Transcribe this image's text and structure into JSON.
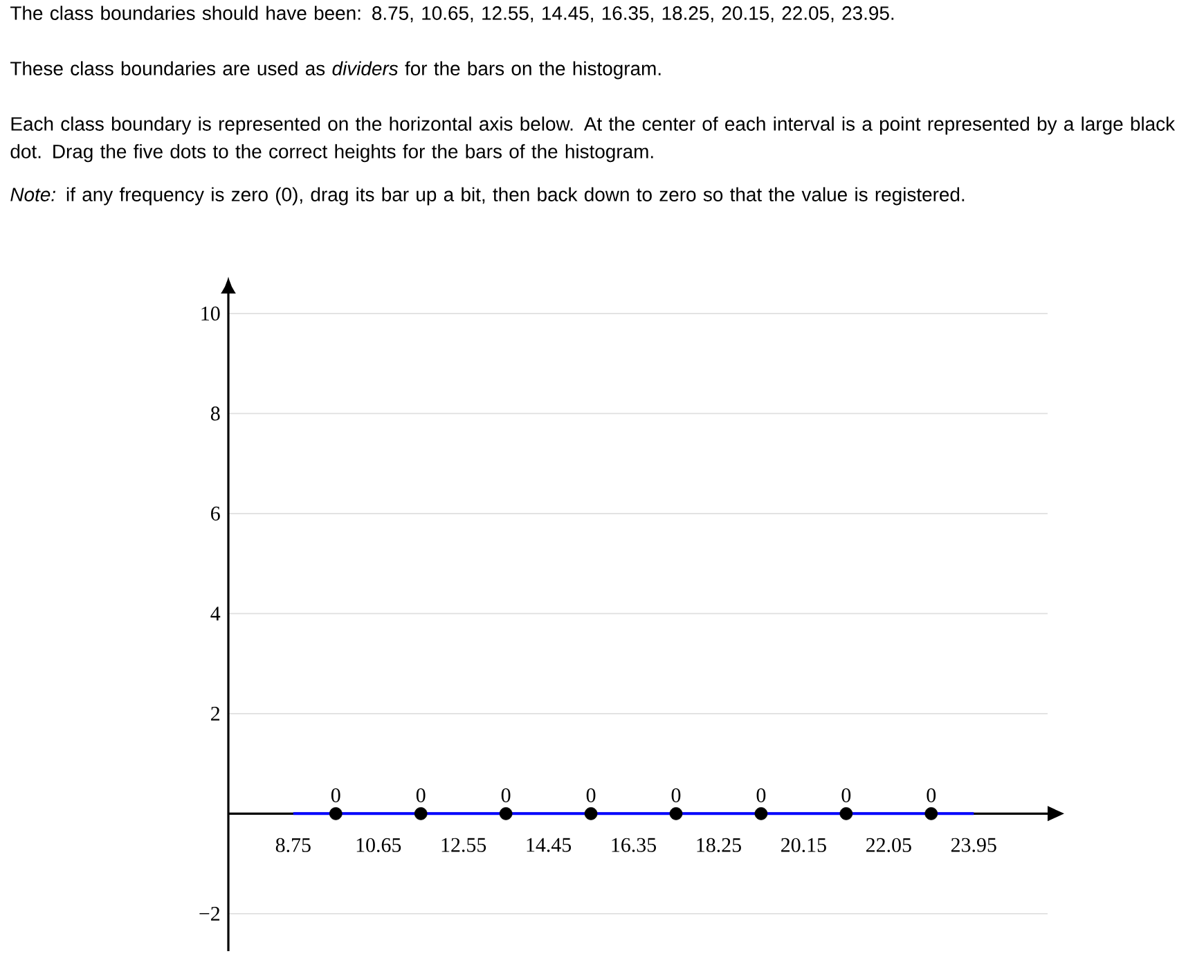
{
  "chart_data": {
    "type": "line",
    "title": "The class boundaries should have been: 8.75, 10.65, 12.55, 14.45, 16.35, 18.25, 20.15, 22.05, 23.95.",
    "annotations": [
      "These class boundaries are used as *dividers* for the bars on the histogram.",
      "Each class boundary is represented on the horizontal axis below. At the center of each interval is a point represented by a large black dot. Drag the five dots to the correct heights for the bars of the histogram.",
      "*Note:* if any frequency is zero (0), drag its bar up a bit, then back down to zero so that the value is registered."
    ],
    "series": [
      {
        "color": "#0000ff",
        "marker": "none",
        "x": [
          8.75,
          23.95
        ],
        "values": [
          0,
          0
        ]
      },
      {
        "type": "scatter",
        "color": "#000000",
        "marker": "circle",
        "x": [
          9.7,
          11.6,
          13.5,
          15.4,
          17.3,
          19.2,
          21.1,
          23.0
        ],
        "values": [
          0,
          0,
          0,
          0,
          0,
          0,
          0,
          0
        ],
        "value_labels": [
          "0",
          "0",
          "0",
          "0",
          "0",
          "0",
          "0",
          "0"
        ]
      }
    ],
    "xlim": [
      7.3,
      25.6
    ],
    "xticks": [
      8.75,
      10.65,
      12.55,
      14.45,
      16.35,
      18.25,
      20.15,
      22.05,
      23.95
    ],
    "ylim": [
      -2.75,
      10.4
    ],
    "yticks": [
      {
        "value": -2,
        "label": "−2"
      },
      2,
      4,
      6,
      8,
      10
    ],
    "grid": "y"
  }
}
